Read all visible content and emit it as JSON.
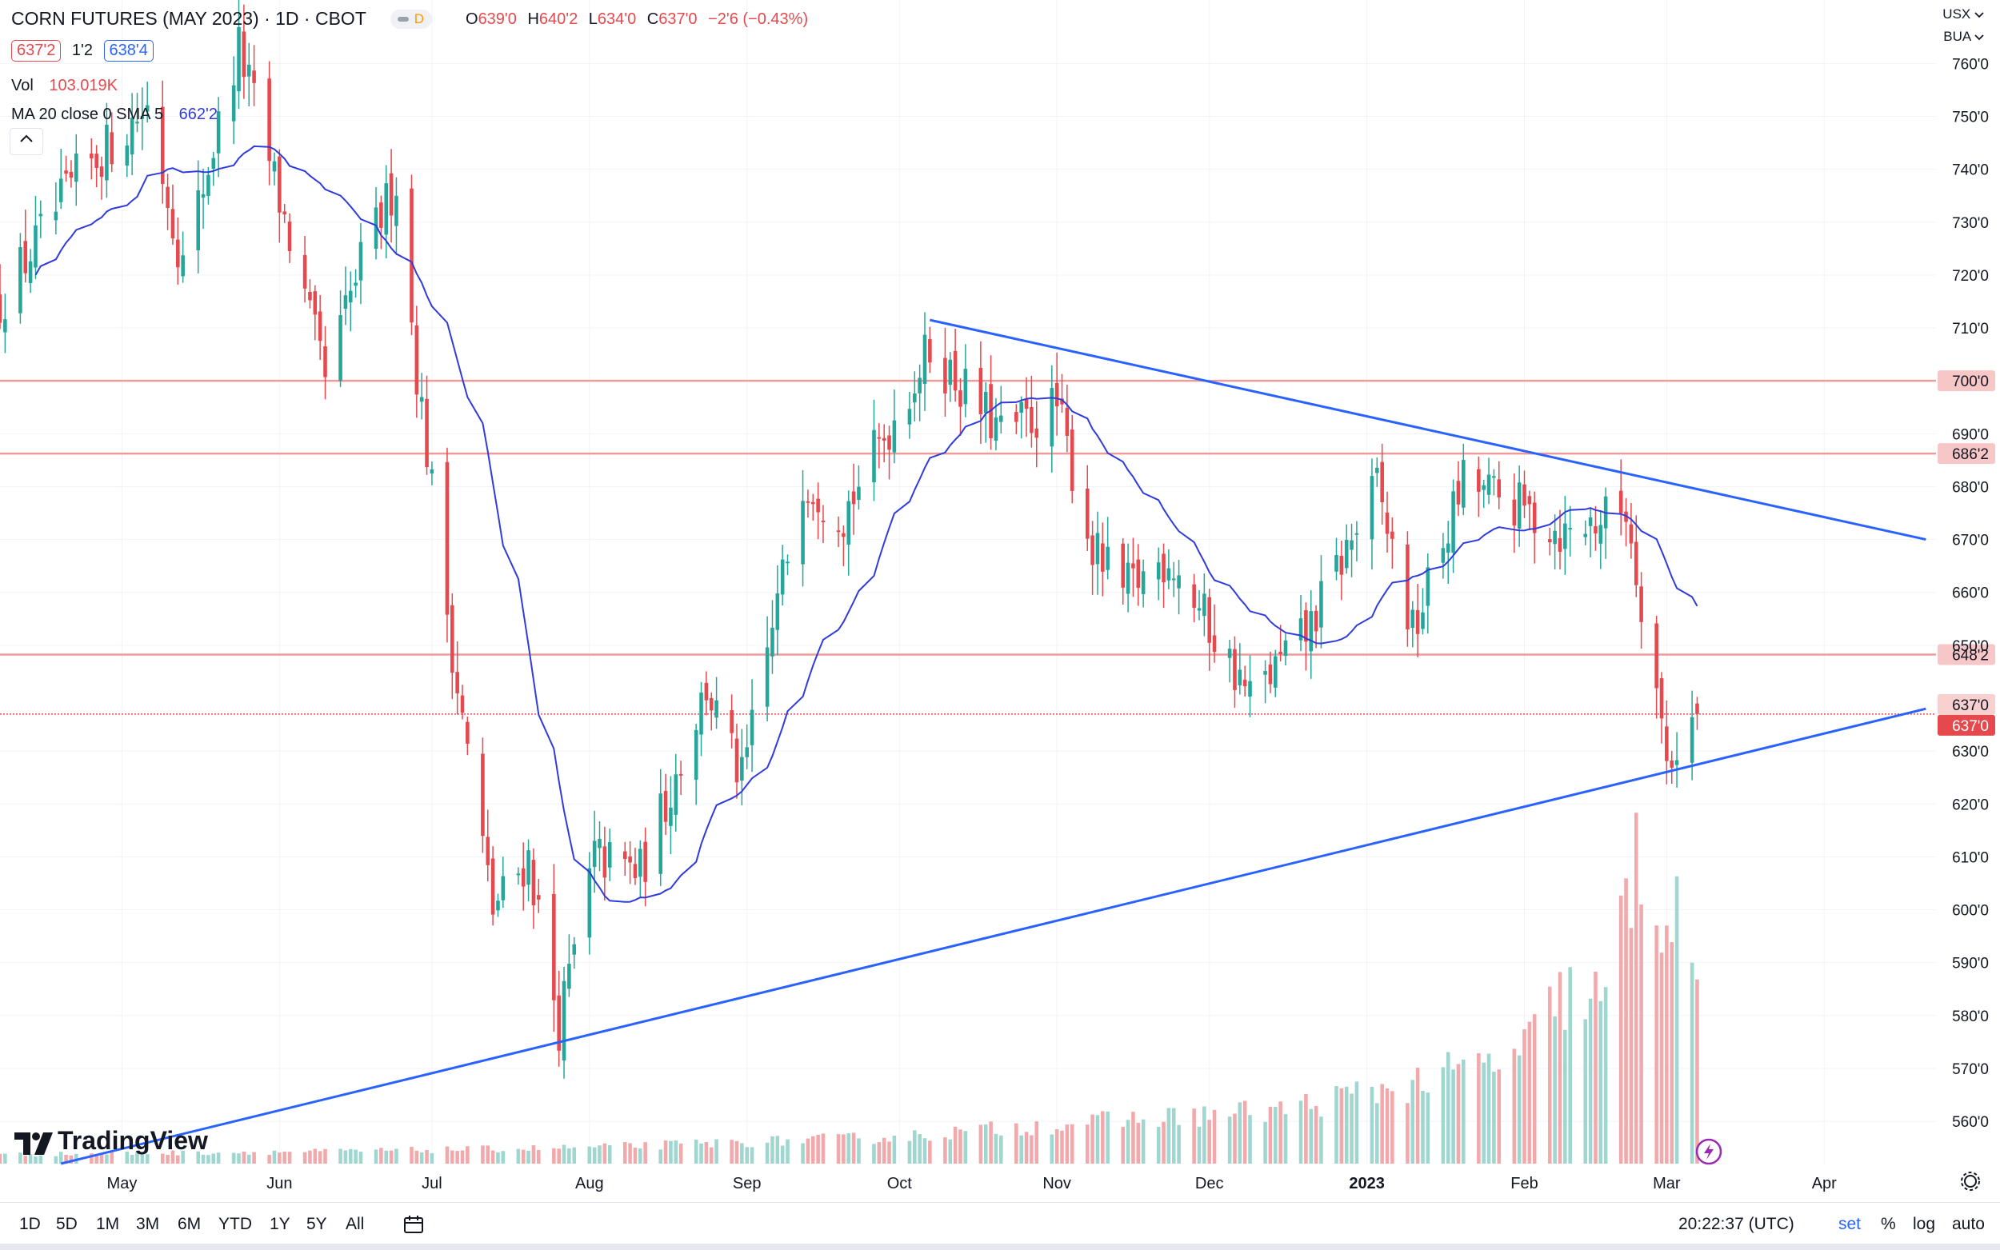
{
  "header": {
    "title": "CORN FUTURES (MAY 2023) · 1D · CBOT",
    "badge": "D",
    "ohlc": {
      "o_label": "O",
      "o": "639'0",
      "h_label": "H",
      "h": "640'2",
      "l_label": "L",
      "l": "634'0",
      "c_label": "C",
      "c": "637'0",
      "change": "−2'6 (−0.43%)"
    },
    "bid": "637'2",
    "spread": "1'2",
    "ask": "638'4",
    "volume_label": "Vol",
    "volume_value": "103.019K",
    "ma_label": "MA 20 close 0 SMA 5",
    "ma_value": "662'2",
    "collapse_icon": "chevron-up-icon"
  },
  "units": {
    "currency": "USX",
    "unit": "BUA"
  },
  "bottombar": {
    "timeframes": [
      "1D",
      "5D",
      "1M",
      "3M",
      "6M",
      "YTD",
      "1Y",
      "5Y",
      "All"
    ],
    "time": "20:22:37 (UTC)",
    "set": "set",
    "percent": "%",
    "log": "log",
    "auto": "auto"
  },
  "branding": "TradingView",
  "colors": {
    "up": "#26a69a",
    "down": "#e5484d",
    "ma": "#2f3bdc",
    "trend": "#2962ff",
    "level": "#f19a9a"
  },
  "chart_data": {
    "type": "candlestick",
    "y_range": [
      552,
      772
    ],
    "y_ticks": [
      {
        "v": 560,
        "label": "560'0"
      },
      {
        "v": 570,
        "label": "570'0"
      },
      {
        "v": 580,
        "label": "580'0"
      },
      {
        "v": 590,
        "label": "590'0"
      },
      {
        "v": 600,
        "label": "600'0"
      },
      {
        "v": 610,
        "label": "610'0"
      },
      {
        "v": 620,
        "label": "620'0"
      },
      {
        "v": 630,
        "label": "630'0"
      },
      {
        "v": 650,
        "label": "650'0"
      },
      {
        "v": 660,
        "label": "660'0"
      },
      {
        "v": 670,
        "label": "670'0"
      },
      {
        "v": 680,
        "label": "680'0"
      },
      {
        "v": 690,
        "label": "690'0"
      },
      {
        "v": 710,
        "label": "710'0"
      },
      {
        "v": 720,
        "label": "720'0"
      },
      {
        "v": 730,
        "label": "730'0"
      },
      {
        "v": 740,
        "label": "740'0"
      },
      {
        "v": 750,
        "label": "750'0"
      },
      {
        "v": 760,
        "label": "760'0"
      }
    ],
    "x_labels": [
      {
        "date": "2022-05-01",
        "label": "May"
      },
      {
        "date": "2022-06-01",
        "label": "Jun"
      },
      {
        "date": "2022-07-01",
        "label": "Jul"
      },
      {
        "date": "2022-08-01",
        "label": "Aug"
      },
      {
        "date": "2022-09-01",
        "label": "Sep"
      },
      {
        "date": "2022-10-01",
        "label": "Oct"
      },
      {
        "date": "2022-11-01",
        "label": "Nov"
      },
      {
        "date": "2022-12-01",
        "label": "Dec"
      },
      {
        "date": "2023-01-01",
        "label": "2023"
      },
      {
        "date": "2023-02-01",
        "label": "Feb"
      },
      {
        "date": "2023-03-01",
        "label": "Mar"
      },
      {
        "date": "2023-04-01",
        "label": "Apr"
      }
    ],
    "x_range": [
      "2022-04-07",
      "2023-04-23"
    ],
    "horizontal_levels": [
      {
        "price": 700,
        "label": "700'0"
      },
      {
        "price": 686.25,
        "label": "686'2"
      },
      {
        "price": 648.25,
        "label": "648'2"
      }
    ],
    "last_price": {
      "price": 637,
      "label": "637'0"
    },
    "close_label": "637'0",
    "trendlines": [
      {
        "from": {
          "date": "2022-10-07",
          "price": 711.5
        },
        "to": {
          "date": "2023-04-21",
          "price": 670
        }
      },
      {
        "from": {
          "date": "2022-04-19",
          "price": 552
        },
        "to": {
          "date": "2023-04-21",
          "price": 638
        }
      }
    ],
    "anchors": [
      {
        "date": "2022-04-07",
        "close": 715
      },
      {
        "date": "2022-04-22",
        "close": 738
      },
      {
        "date": "2022-05-06",
        "close": 752
      },
      {
        "date": "2022-05-13",
        "close": 722
      },
      {
        "date": "2022-05-24",
        "close": 763
      },
      {
        "date": "2022-05-31",
        "close": 738
      },
      {
        "date": "2022-06-10",
        "close": 700
      },
      {
        "date": "2022-06-17",
        "close": 722
      },
      {
        "date": "2022-06-24",
        "close": 738
      },
      {
        "date": "2022-06-28",
        "close": 702
      },
      {
        "date": "2022-07-06",
        "close": 642
      },
      {
        "date": "2022-07-13",
        "close": 600
      },
      {
        "date": "2022-07-20",
        "close": 610
      },
      {
        "date": "2022-07-26",
        "close": 578
      },
      {
        "date": "2022-08-02",
        "close": 610
      },
      {
        "date": "2022-08-11",
        "close": 607
      },
      {
        "date": "2022-08-24",
        "close": 642
      },
      {
        "date": "2022-08-31",
        "close": 624
      },
      {
        "date": "2022-09-12",
        "close": 682
      },
      {
        "date": "2022-09-20",
        "close": 675
      },
      {
        "date": "2022-10-07",
        "close": 706
      },
      {
        "date": "2022-10-21",
        "close": 690
      },
      {
        "date": "2022-11-01",
        "close": 695
      },
      {
        "date": "2022-11-08",
        "close": 668
      },
      {
        "date": "2022-11-14",
        "close": 660
      },
      {
        "date": "2022-11-23",
        "close": 667
      },
      {
        "date": "2022-12-09",
        "close": 640
      },
      {
        "date": "2022-12-20",
        "close": 652
      },
      {
        "date": "2023-01-03",
        "close": 680
      },
      {
        "date": "2023-01-10",
        "close": 652
      },
      {
        "date": "2023-01-20",
        "close": 681
      },
      {
        "date": "2023-02-02",
        "close": 675
      },
      {
        "date": "2023-02-09",
        "close": 671
      },
      {
        "date": "2023-02-21",
        "close": 676
      },
      {
        "date": "2023-02-27",
        "close": 642
      },
      {
        "date": "2023-03-01",
        "close": 628
      },
      {
        "date": "2023-03-07",
        "close": 637
      }
    ],
    "ma": {
      "name": "MA 20 close 0 SMA 5",
      "last": 662.25
    },
    "volume_range": [
      0,
      170000
    ],
    "volume_profile": [
      {
        "date": "2022-04-07",
        "v": 5000
      },
      {
        "date": "2022-06-15",
        "v": 7000
      },
      {
        "date": "2022-08-01",
        "v": 9000
      },
      {
        "date": "2022-10-01",
        "v": 15000
      },
      {
        "date": "2022-11-01",
        "v": 22000
      },
      {
        "date": "2022-12-15",
        "v": 30000
      },
      {
        "date": "2023-01-10",
        "v": 45000
      },
      {
        "date": "2023-01-31",
        "v": 60000
      },
      {
        "date": "2023-02-09",
        "v": 95000
      },
      {
        "date": "2023-02-17",
        "v": 90000
      },
      {
        "date": "2023-02-23",
        "v": 165000
      },
      {
        "date": "2023-02-28",
        "v": 150000
      },
      {
        "date": "2023-03-07",
        "v": 103019
      }
    ]
  }
}
